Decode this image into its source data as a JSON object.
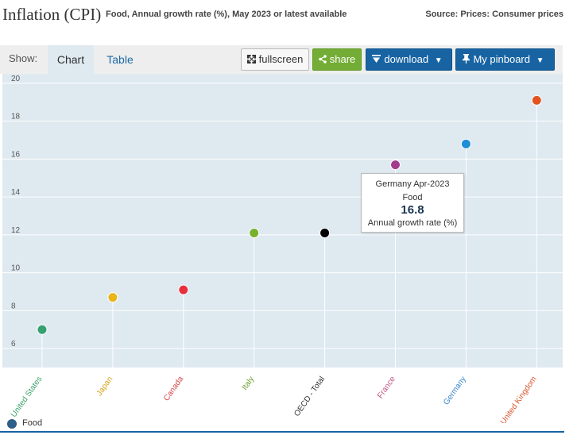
{
  "header": {
    "title": "Inflation (CPI)",
    "subtitle": "Food, Annual growth rate (%), May 2023 or latest available",
    "source": "Source: Prices: Consumer prices"
  },
  "toolbar": {
    "show_label": "Show:",
    "tabs": [
      {
        "label": "Chart",
        "active": true
      },
      {
        "label": "Table",
        "active": false
      }
    ],
    "buttons": {
      "fullscreen": "fullscreen",
      "share": "share",
      "download": "download",
      "pinboard": "My pinboard"
    },
    "icons": {
      "fullscreen": "expand-icon",
      "share": "share-icon",
      "download": "download-icon",
      "pinboard": "pin-icon",
      "dropdown": "caret-down-icon"
    }
  },
  "colors": {
    "plot_background": "#dfe9f0",
    "gridline": "#ffffff",
    "axis_text": "#555555",
    "accent_blue": "#1864a3",
    "share_green": "#74ad35"
  },
  "chart_data": {
    "type": "scatter",
    "title": "",
    "xlabel": "",
    "ylabel": "",
    "ylim": [
      5,
      20.5
    ],
    "yticks": [
      6,
      8,
      10,
      12,
      14,
      16,
      18,
      20
    ],
    "grid": true,
    "legend_position": "bottom-left",
    "categories": [
      "United States",
      "Japan",
      "Canada",
      "Italy",
      "OECD - Total",
      "France",
      "Germany",
      "United Kingdom"
    ],
    "category_colors": [
      "#3ba36b",
      "#d4a41b",
      "#d64545",
      "#6d9e2e",
      "#333333",
      "#c0527f",
      "#3a86c8",
      "#d9542b"
    ],
    "marker_colors": [
      "#35a070",
      "#e8b51a",
      "#e8303c",
      "#77b12e",
      "#000000",
      "#a33c8c",
      "#1e8fd6",
      "#e3531f"
    ],
    "series": [
      {
        "name": "Food",
        "values": [
          7.0,
          8.7,
          9.1,
          12.1,
          12.1,
          15.7,
          16.8,
          19.1
        ]
      }
    ],
    "tooltip": {
      "title": "Germany Apr-2023",
      "series": "Food",
      "value": "16.8",
      "unit": "Annual growth rate (%)"
    }
  }
}
